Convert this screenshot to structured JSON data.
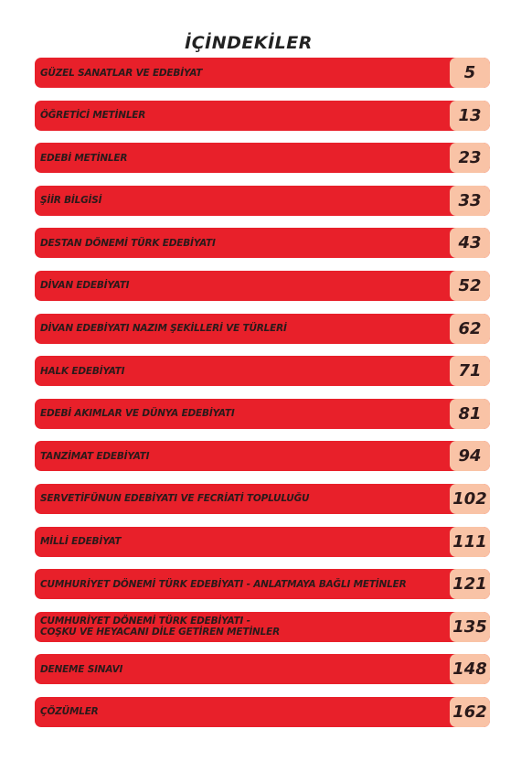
{
  "title": "İÇİNDEKİLER",
  "entries": [
    {
      "title": "GÜZEL SANATLAR VE EDEBİYAT",
      "page": 5
    },
    {
      "title": "ÖĞRETİCİ METİNLER",
      "page": 13
    },
    {
      "title": "EDEBİ METİNLER",
      "page": 23
    },
    {
      "title": "ŞİİR BİLGİSİ",
      "page": 33
    },
    {
      "title": "DESTAN DÖNEMİ TÜRK EDEBİYATI",
      "page": 43
    },
    {
      "title": "DİVAN EDEBİYATI",
      "page": 52
    },
    {
      "title": "DİVAN EDEBİYATI NAZIM ŞEKİLLERİ VE TÜRLERİ",
      "page": 62
    },
    {
      "title": "HALK EDEBİYATI",
      "page": 71
    },
    {
      "title": "EDEBİ AKIMLAR VE DÜNYA EDEBİYATI",
      "page": 81
    },
    {
      "title": "TANZİMAT EDEBİYATI",
      "page": 94
    },
    {
      "title": "SERVETİFÜNUN EDEBİYATI VE FECRİATİ TOPLULUĞU",
      "page": 102
    },
    {
      "title": "MİLLİ EDEBİYAT",
      "page": 111
    },
    {
      "title": "CUMHURİYET DÖNEMİ TÜRK EDEBİYATI - ANLATMAYA BAĞLI METİNLER",
      "page": 121
    },
    {
      "title": "CUMHURİYET DÖNEMİ TÜRK EDEBİYATI -\nCOŞKU VE HEYACANI DİLE GETİREN METİNLER",
      "page": 135
    },
    {
      "title": "DENEME SINAVI",
      "page": 148
    },
    {
      "title": "ÇÖZÜMLER",
      "page": 162
    }
  ]
}
